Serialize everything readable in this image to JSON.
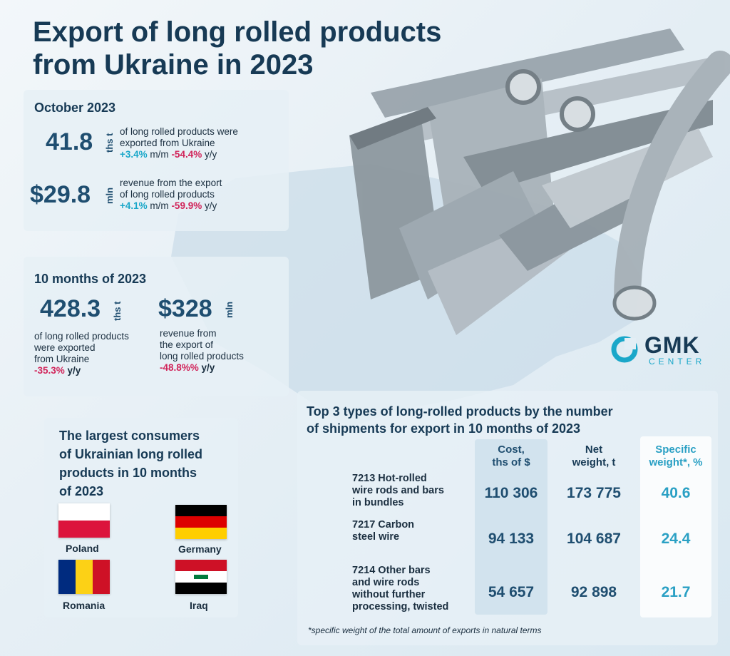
{
  "title_line1": "Export of long rolled products",
  "title_line2": "from Ukraine in 2023",
  "october": {
    "heading": "October 2023",
    "volume": {
      "value": "41.8",
      "unit": "ths t",
      "text1": "of long rolled products were",
      "text2": "exported from Ukraine",
      "mm": "+3.4%",
      "mm_label": "m/m",
      "yy": "-54.4%",
      "yy_label": "y/y"
    },
    "revenue": {
      "value": "$29.8",
      "unit": "mln",
      "text1": "revenue from the export",
      "text2": "of long rolled products",
      "mm": "+4.1%",
      "mm_label": "m/m",
      "yy": "-59.9%",
      "yy_label": "y/y"
    }
  },
  "ten_months": {
    "heading": "10 months of 2023",
    "volume": {
      "value": "428.3",
      "unit": "ths t",
      "text1": "of long rolled products",
      "text2": "were exported",
      "text3": "from Ukraine",
      "yy": "-35.3%",
      "yy_label": "y/y"
    },
    "revenue": {
      "value": "$328",
      "unit": "mln",
      "text1": "revenue from",
      "text2": "the export of",
      "text3": "long rolled products",
      "yy": "-48.8%%",
      "yy_label": "y/y"
    }
  },
  "consumers": {
    "heading1": "The largest consumers",
    "heading2": "of Ukrainian long rolled",
    "heading3": "products in 10 months",
    "heading4": "of 2023",
    "countries": [
      "Poland",
      "Germany",
      "Romania",
      "Iraq"
    ]
  },
  "brand": {
    "name": "GMK",
    "sub": "CENTER",
    "color": "#1aa7c9"
  },
  "table": {
    "heading1": "Top 3 types of long-rolled products by the number",
    "heading2": "of shipments for export in 10 months of 2023",
    "col1a": "Cost,",
    "col1b": "ths of $",
    "col2a": "Net",
    "col2b": "weight, t",
    "col3a": "Specific",
    "col3b": "weight*, %",
    "rows": [
      {
        "l1": "7213 Hot-rolled",
        "l2": "wire rods and bars",
        "l3": "in bundles",
        "l4": "",
        "cost": "110 306",
        "weight": "173 775",
        "share": "40.6"
      },
      {
        "l1": "7217 Carbon",
        "l2": "steel wire",
        "l3": "",
        "l4": "",
        "cost": "94 133",
        "weight": "104 687",
        "share": "24.4"
      },
      {
        "l1": "7214 Other bars",
        "l2": "and wire rods",
        "l3": "without further",
        "l4": "processing, twisted",
        "cost": "54 657",
        "weight": "92 898",
        "share": "21.7"
      }
    ],
    "footnote": "*specific weight of the total amount of exports in natural terms"
  }
}
